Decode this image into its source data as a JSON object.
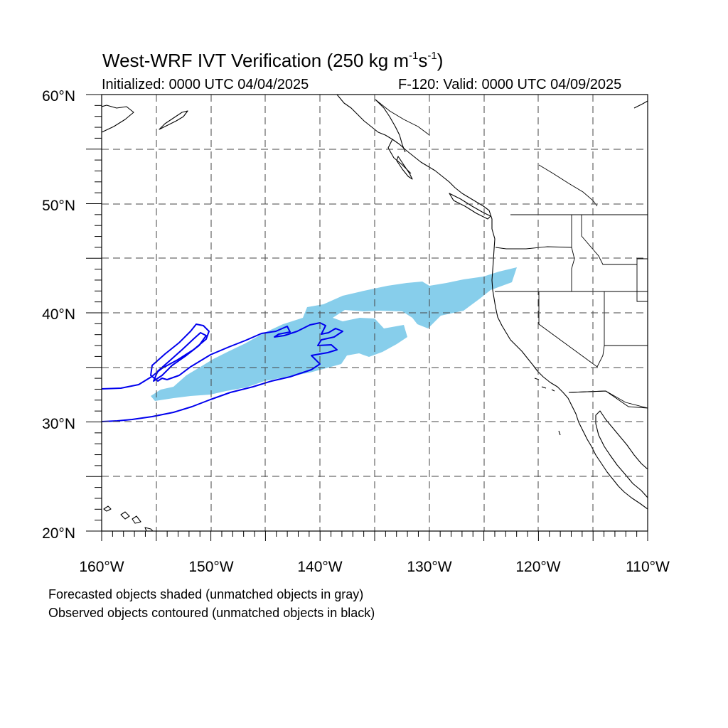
{
  "title": {
    "main": "West-WRF IVT Verification (250 kg m",
    "exp1": "-1",
    "mid": "s",
    "exp2": "-1",
    "end": ")"
  },
  "initialized": "Initialized: 0000 UTC 04/04/2025",
  "valid": "F-120: Valid: 0000 UTC 04/09/2025",
  "map": {
    "lat_range": [
      20,
      60
    ],
    "lon_range": [
      -160,
      -110
    ],
    "lat_labels": [
      "20°N",
      "30°N",
      "40°N",
      "50°N",
      "60°N"
    ],
    "lon_labels": [
      "160°W",
      "150°W",
      "140°W",
      "130°W",
      "120°W",
      "110°W"
    ],
    "grid_interval_deg": 5,
    "forecast_color": "#87ceeb",
    "observed_color": "#0000ee",
    "coast_color": "#000000"
  },
  "footnotes": [
    "Forecasted objects shaded (unmatched objects in gray)",
    "Observed objects contoured (unmatched objects in black)"
  ]
}
